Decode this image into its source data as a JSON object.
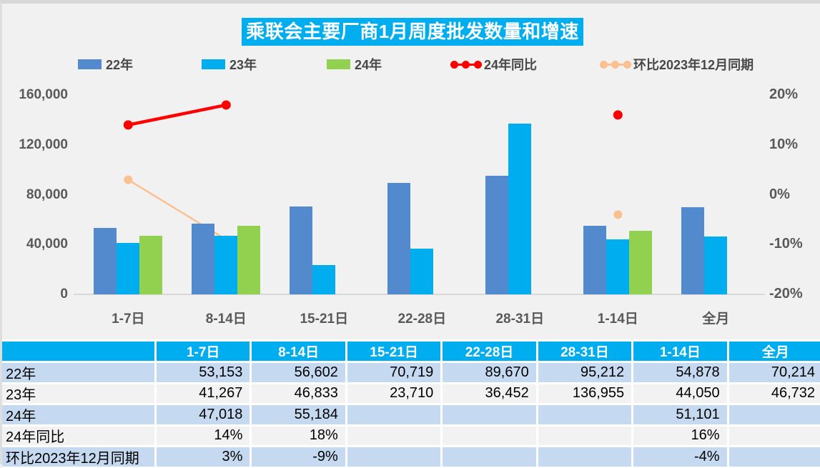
{
  "colors": {
    "accent_cyan": "#00AEEF",
    "bar_blue": "#5389CD",
    "bar_cyan": "#00AEEF",
    "bar_green": "#92D050",
    "line_red": "#FF0000",
    "line_peach": "#FAC090",
    "row_blue": "#C5D9F0",
    "row_gray": "#F2F2F2",
    "axis_text": "#595959"
  },
  "chart_data": {
    "type": "bar+line",
    "title": "乘联会主要厂商1月周度批发数量和增速",
    "categories": [
      "1-7日",
      "8-14日",
      "15-21日",
      "22-28日",
      "28-31日",
      "1-14日",
      "全月"
    ],
    "series": [
      {
        "name": "22年",
        "type": "bar",
        "axis": "left",
        "color": "#5389CD",
        "values": [
          53153,
          56602,
          70719,
          89670,
          95212,
          54878,
          70214
        ]
      },
      {
        "name": "23年",
        "type": "bar",
        "axis": "left",
        "color": "#00AEEF",
        "values": [
          41267,
          46833,
          23710,
          36452,
          136955,
          44050,
          46732
        ]
      },
      {
        "name": "24年",
        "type": "bar",
        "axis": "left",
        "color": "#92D050",
        "values": [
          47018,
          55184,
          null,
          null,
          null,
          51101,
          null
        ]
      },
      {
        "name": "24年同比",
        "type": "line",
        "axis": "right",
        "color": "#FF0000",
        "values": [
          14,
          18,
          null,
          null,
          null,
          16,
          null
        ]
      },
      {
        "name": "环比2023年12月同期",
        "type": "line",
        "axis": "right",
        "color": "#FAC090",
        "values": [
          3,
          -9,
          null,
          null,
          null,
          -4,
          null
        ]
      }
    ],
    "left_axis": {
      "min": 0,
      "max": 160000,
      "ticks": [
        {
          "label": "0",
          "value": 0
        },
        {
          "label": "40,000",
          "value": 40000
        },
        {
          "label": "80,000",
          "value": 80000
        },
        {
          "label": "120,000",
          "value": 120000
        },
        {
          "label": "160,000",
          "value": 160000
        }
      ]
    },
    "right_axis": {
      "min": -20,
      "max": 20,
      "ticks": [
        {
          "label": "-20%",
          "value": -20
        },
        {
          "label": "-10%",
          "value": -10
        },
        {
          "label": "0%",
          "value": 0
        },
        {
          "label": "10%",
          "value": 10
        },
        {
          "label": "20%",
          "value": 20
        }
      ]
    },
    "grid": false,
    "legend_position": "top"
  },
  "legend": [
    {
      "label": "22年",
      "type": "bar",
      "color": "#5389CD"
    },
    {
      "label": "23年",
      "type": "bar",
      "color": "#00AEEF"
    },
    {
      "label": "24年",
      "type": "bar",
      "color": "#92D050"
    },
    {
      "label": "24年同比",
      "type": "line",
      "color": "#FF0000"
    },
    {
      "label": "环比2023年12月同期",
      "type": "line",
      "color": "#FAC090"
    }
  ],
  "table": {
    "col_headers": [
      "",
      "1-7日",
      "8-14日",
      "15-21日",
      "22-28日",
      "28-31日",
      "1-14日",
      "全月"
    ],
    "rows": [
      {
        "label": "22年",
        "values": [
          "53,153",
          "56,602",
          "70,719",
          "89,670",
          "95,212",
          "54,878",
          "70,214"
        ]
      },
      {
        "label": "23年",
        "values": [
          "41,267",
          "46,833",
          "23,710",
          "36,452",
          "136,955",
          "44,050",
          "46,732"
        ]
      },
      {
        "label": "24年",
        "values": [
          "47,018",
          "55,184",
          "",
          "",
          "",
          "51,101",
          ""
        ]
      },
      {
        "label": "24年同比",
        "values": [
          "14%",
          "18%",
          "",
          "",
          "",
          "16%",
          ""
        ]
      },
      {
        "label": "环比2023年12月同期",
        "values": [
          "3%",
          "-9%",
          "",
          "",
          "",
          "-4%",
          ""
        ]
      }
    ]
  }
}
